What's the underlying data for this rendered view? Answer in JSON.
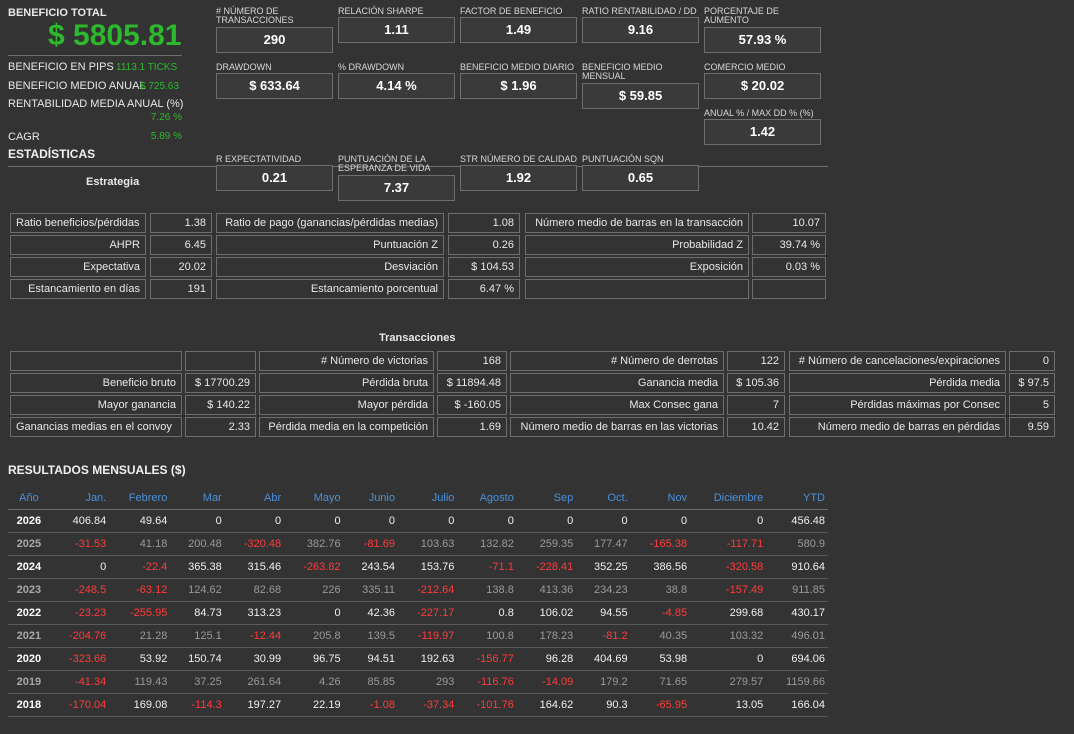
{
  "summary": {
    "total_label": "BENEFICIO TOTAL",
    "total_value": "$ 5805.81",
    "pips_label": "BENEFICIO EN PIPS",
    "pips_value": "1113.1 TICKS",
    "annual_avg_label": "BENEFICIO MEDIO ANUAL",
    "annual_avg_value": "$ 725.63",
    "annual_ret_label": "RENTABILIDAD MEDIA ANUAL (%)",
    "annual_ret_value": "7.26 %",
    "cagr_label": "CAGR",
    "cagr_value": "5.89 %",
    "stats_label": "ESTADÍSTICAS",
    "strategy_label": "Estrategia"
  },
  "metrics": [
    {
      "label": "# NÚMERO DE TRANSACCIONES",
      "value": "290"
    },
    {
      "label": "RELACIÓN SHARPE",
      "value": "1.11"
    },
    {
      "label": "FACTOR DE BENEFICIO",
      "value": "1.49"
    },
    {
      "label": "RATIO RENTABILIDAD / DD",
      "value": "9.16"
    },
    {
      "label": "PORCENTAJE DE AUMENTO",
      "value": "57.93 %"
    },
    {
      "label": "DRAWDOWN",
      "value": "$ 633.64"
    },
    {
      "label": "% DRAWDOWN",
      "value": "4.14 %"
    },
    {
      "label": "BENEFICIO MEDIO DIARIO",
      "value": "$ 1.96"
    },
    {
      "label": "BENEFICIO MEDIO MENSUAL",
      "value": "$ 59.85"
    },
    {
      "label": "COMERCIO MEDIO",
      "value": "$ 20.02"
    },
    {
      "label": "ANUAL % / MAX DD % (%)",
      "value": "1.42"
    },
    {
      "label": "R EXPECTATIVIDAD",
      "value": "0.21"
    },
    {
      "label": "PUNTUACIÓN DE LA ESPERANZA DE VIDA",
      "value": "7.37"
    },
    {
      "label": "STR NÚMERO DE CALIDAD",
      "value": "1.92"
    },
    {
      "label": "PUNTUACIÓN SQN",
      "value": "0.65"
    }
  ],
  "stats_grid": [
    [
      "Ratio beneficios/pérdidas",
      "1.38",
      "Ratio de pago (ganancias/pérdidas medias)",
      "1.08",
      "Número medio de barras en la transacción",
      "10.07"
    ],
    [
      "AHPR",
      "6.45",
      "Puntuación Z",
      "0.26",
      "Probabilidad Z",
      "39.74 %"
    ],
    [
      "Expectativa",
      "20.02",
      "Desviación",
      "$ 104.53",
      "Exposición",
      "0.03 %"
    ],
    [
      "Estancamiento en días",
      "191",
      "Estancamiento porcentual",
      "6.47 %",
      "",
      ""
    ]
  ],
  "transactions": {
    "title": "Transacciones",
    "rows": [
      [
        "",
        "",
        "# Número de victorias",
        "168",
        "# Número de derrotas",
        "122",
        "# Número de cancelaciones/expiraciones",
        "0"
      ],
      [
        "Beneficio bruto",
        "$ 17700.29",
        "Pérdida bruta",
        "$ 11894.48",
        "Ganancia media",
        "$ 105.36",
        "Pérdida media",
        "$ 97.5"
      ],
      [
        "Mayor ganancia",
        "$ 140.22",
        "Mayor pérdida",
        "$ -160.05",
        "Max Consec gana",
        "7",
        "Pérdidas máximas por Consec",
        "5"
      ],
      [
        "Ganancias medias en el convoy",
        "2.33",
        "Pérdida media en la competición",
        "1.69",
        "Número medio de barras en las victorias",
        "10.42",
        "Número medio de barras en pérdidas",
        "9.59"
      ]
    ]
  },
  "monthly": {
    "title": "RESULTADOS MENSUALES ($)",
    "headers": [
      "Año",
      "Jan.",
      "Febrero",
      "Mar",
      "Abr",
      "Mayo",
      "Junio",
      "Julio",
      "Agosto",
      "Sep",
      "Oct.",
      "Nov",
      "Diciembre",
      "YTD"
    ],
    "rows": [
      [
        "2026",
        "406.84",
        "49.64",
        "0",
        "0",
        "0",
        "0",
        "0",
        "0",
        "0",
        "0",
        "0",
        "0",
        "456.48"
      ],
      [
        "2025",
        "-31.53",
        "41.18",
        "200.48",
        "-320.48",
        "382.76",
        "-81.69",
        "103.63",
        "132.82",
        "259.35",
        "177.47",
        "-165.38",
        "-117.71",
        "580.9"
      ],
      [
        "2024",
        "0",
        "-22.4",
        "365.38",
        "315.46",
        "-263.82",
        "243.54",
        "153.76",
        "-71.1",
        "-228.41",
        "352.25",
        "386.56",
        "-320.58",
        "910.64"
      ],
      [
        "2023",
        "-248.5",
        "-63.12",
        "124.62",
        "82.68",
        "226",
        "335.11",
        "-212.64",
        "138.8",
        "413.36",
        "234.23",
        "38.8",
        "-157.49",
        "911.85"
      ],
      [
        "2022",
        "-23.23",
        "-255.95",
        "84.73",
        "313.23",
        "0",
        "42.36",
        "-227.17",
        "0.8",
        "106.02",
        "94.55",
        "-4.85",
        "299.68",
        "430.17"
      ],
      [
        "2021",
        "-204.76",
        "21.28",
        "125.1",
        "-12.44",
        "205.8",
        "139.5",
        "-119.97",
        "100.8",
        "178.23",
        "-81.2",
        "40.35",
        "103.32",
        "496.01"
      ],
      [
        "2020",
        "-323.66",
        "53.92",
        "150.74",
        "30.99",
        "96.75",
        "94.51",
        "192.63",
        "-156.77",
        "96.28",
        "404.69",
        "53.98",
        "0",
        "694.06"
      ],
      [
        "2019",
        "-41.34",
        "119.43",
        "37.25",
        "261.64",
        "4.26",
        "85.85",
        "293",
        "-116.76",
        "-14.09",
        "179.2",
        "71.65",
        "279.57",
        "1159.66"
      ],
      [
        "2018",
        "-170.04",
        "169.08",
        "-114.3",
        "197.27",
        "22.19",
        "-1.08",
        "-37.34",
        "-101.76",
        "164.62",
        "90.3",
        "-65.95",
        "13.05",
        "166.04"
      ]
    ]
  },
  "colors": {
    "background": "#333333",
    "positive": "#2db82d",
    "negative": "#ff3b3b",
    "header": "#4a90d9"
  }
}
